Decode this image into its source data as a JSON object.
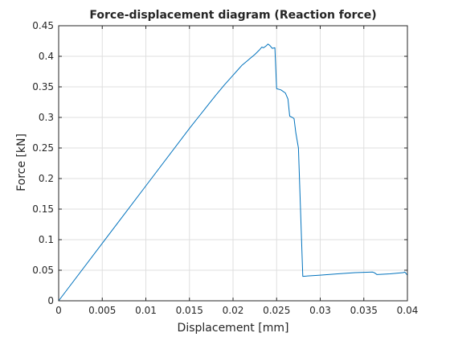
{
  "chart_data": {
    "type": "line",
    "title": "Force-displacement diagram (Reaction force)",
    "xlabel": "Displacement [mm]",
    "ylabel": "Force [kN]",
    "xlim": [
      0,
      0.04
    ],
    "ylim": [
      0,
      0.45
    ],
    "xticks": [
      0,
      0.005,
      0.01,
      0.015,
      0.02,
      0.025,
      0.03,
      0.035,
      0.04
    ],
    "xtick_labels": [
      "0",
      "0.005",
      "0.01",
      "0.015",
      "0.02",
      "0.025",
      "0.03",
      "0.035",
      "0.04"
    ],
    "yticks": [
      0,
      0.05,
      0.1,
      0.15,
      0.2,
      0.25,
      0.3,
      0.35,
      0.4,
      0.45
    ],
    "ytick_labels": [
      "0",
      "0.05",
      "0.1",
      "0.15",
      "0.2",
      "0.25",
      "0.3",
      "0.35",
      "0.4",
      "0.45"
    ],
    "grid": true,
    "series": [
      {
        "color": "#0072bd",
        "x": [
          0,
          0.005,
          0.01,
          0.015,
          0.0155,
          0.016,
          0.017,
          0.018,
          0.019,
          0.02,
          0.0205,
          0.021,
          0.0215,
          0.022,
          0.0225,
          0.023,
          0.0233,
          0.0235,
          0.0238,
          0.024,
          0.0242,
          0.0245,
          0.0248,
          0.025,
          0.0255,
          0.026,
          0.0263,
          0.0265,
          0.0268,
          0.027,
          0.0272,
          0.0275,
          0.028,
          0.03,
          0.032,
          0.034,
          0.036,
          0.0362,
          0.0365,
          0.038,
          0.0395,
          0.0397,
          0.04
        ],
        "y": [
          0,
          0.094,
          0.188,
          0.282,
          0.291,
          0.3,
          0.318,
          0.336,
          0.353,
          0.369,
          0.377,
          0.385,
          0.391,
          0.397,
          0.403,
          0.41,
          0.415,
          0.414,
          0.417,
          0.42,
          0.418,
          0.413,
          0.414,
          0.347,
          0.345,
          0.34,
          0.33,
          0.302,
          0.3,
          0.298,
          0.275,
          0.25,
          0.04,
          0.042,
          0.044,
          0.046,
          0.047,
          0.046,
          0.043,
          0.044,
          0.046,
          0.047,
          0.042
        ]
      }
    ]
  }
}
